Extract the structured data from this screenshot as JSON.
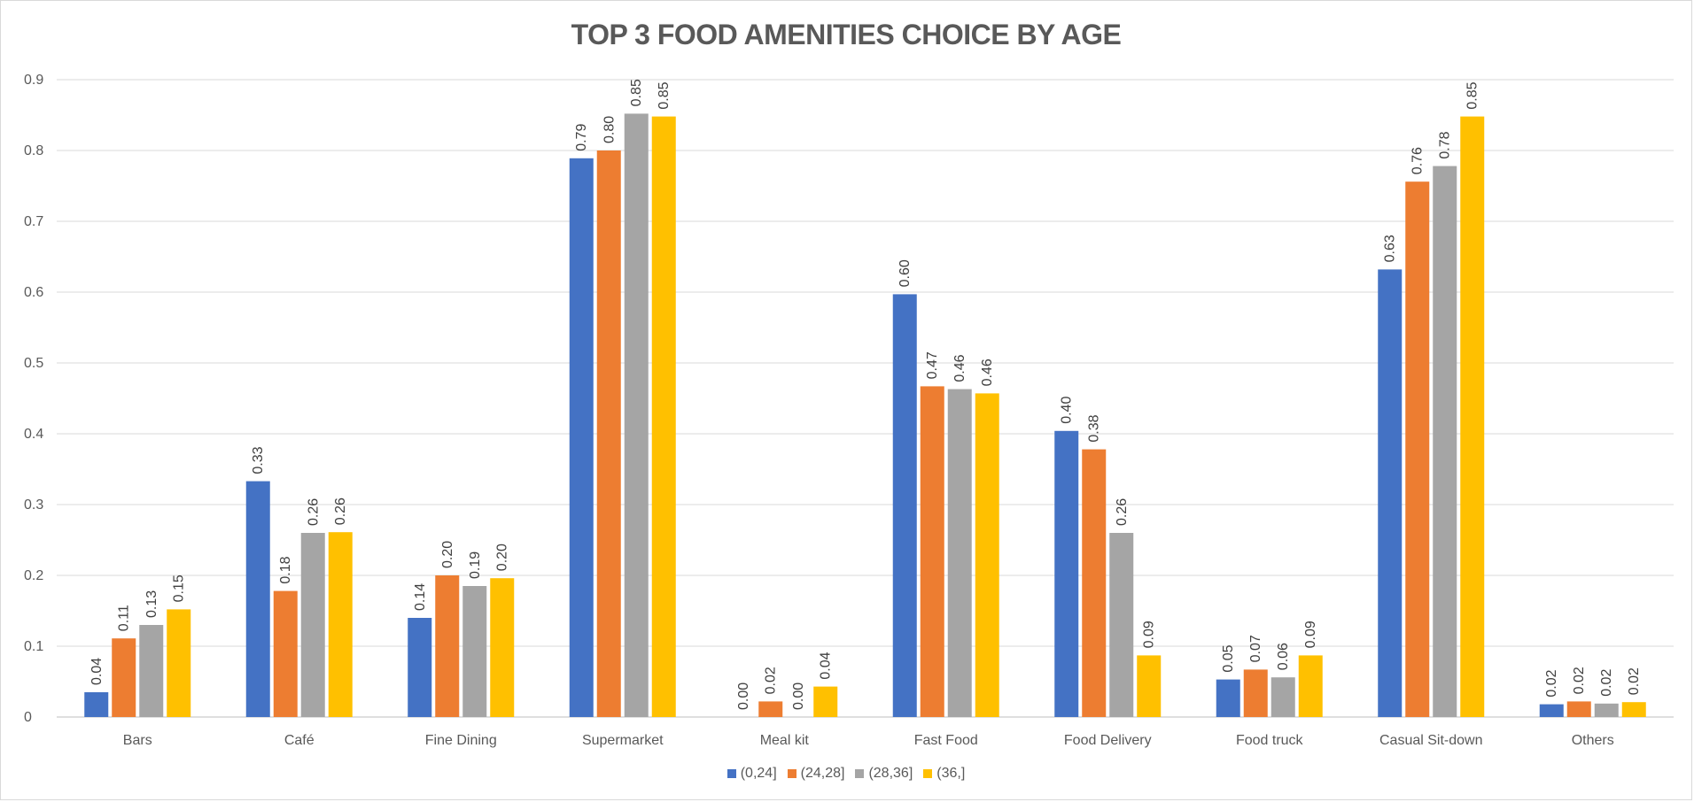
{
  "chart_data": {
    "type": "bar",
    "title": "TOP 3 FOOD AMENITIES CHOICE BY AGE",
    "xlabel": "",
    "ylabel": "",
    "ylim": [
      0,
      0.9
    ],
    "yticks": [
      0,
      0.1,
      0.2,
      0.3,
      0.4,
      0.5,
      0.6,
      0.7,
      0.8,
      0.9
    ],
    "ytick_labels": [
      "0",
      "0.1",
      "0.2",
      "0.3",
      "0.4",
      "0.5",
      "0.6",
      "0.7",
      "0.8",
      "0.9"
    ],
    "grid": true,
    "legend_position": "bottom",
    "categories": [
      "Bars",
      "Café",
      "Fine Dining",
      "Supermarket",
      "Meal kit",
      "Fast Food",
      "Food Delivery",
      "Food truck",
      "Casual Sit-down",
      "Others"
    ],
    "series": [
      {
        "name": "(0,24]",
        "color": "#4472c4",
        "values": [
          0.035,
          0.333,
          0.14,
          0.789,
          0.0,
          0.597,
          0.404,
          0.053,
          0.632,
          0.018
        ],
        "labels": [
          "0.04",
          "0.33",
          "0.14",
          "0.79",
          "0.00",
          "0.60",
          "0.40",
          "0.05",
          "0.63",
          "0.02"
        ]
      },
      {
        "name": "(24,28]",
        "color": "#ed7d31",
        "values": [
          0.111,
          0.178,
          0.2,
          0.8,
          0.022,
          0.467,
          0.378,
          0.067,
          0.756,
          0.022
        ],
        "labels": [
          "0.11",
          "0.18",
          "0.20",
          "0.80",
          "0.02",
          "0.47",
          "0.38",
          "0.07",
          "0.76",
          "0.02"
        ]
      },
      {
        "name": "(28,36]",
        "color": "#a5a5a5",
        "values": [
          0.13,
          0.26,
          0.185,
          0.852,
          0.0,
          0.463,
          0.26,
          0.056,
          0.778,
          0.019
        ],
        "labels": [
          "0.13",
          "0.26",
          "0.19",
          "0.85",
          "0.00",
          "0.46",
          "0.26",
          "0.06",
          "0.78",
          "0.02"
        ]
      },
      {
        "name": "(36,]",
        "color": "#ffc000",
        "values": [
          0.152,
          0.261,
          0.196,
          0.848,
          0.043,
          0.457,
          0.087,
          0.087,
          0.848,
          0.021
        ],
        "labels": [
          "0.15",
          "0.26",
          "0.20",
          "0.85",
          "0.04",
          "0.46",
          "0.09",
          "0.09",
          "0.85",
          "0.02"
        ]
      }
    ]
  }
}
